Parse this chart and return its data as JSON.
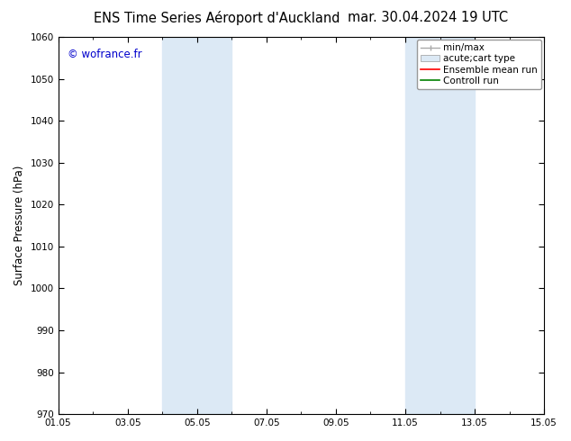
{
  "title_left": "ENS Time Series Aéroport d'Auckland",
  "title_right": "mar. 30.04.2024 19 UTC",
  "ylabel": "Surface Pressure (hPa)",
  "ylim": [
    970,
    1060
  ],
  "yticks": [
    970,
    980,
    990,
    1000,
    1010,
    1020,
    1030,
    1040,
    1050,
    1060
  ],
  "xtick_labels": [
    "01.05",
    "03.05",
    "05.05",
    "07.05",
    "09.05",
    "11.05",
    "13.05",
    "15.05"
  ],
  "xtick_positions": [
    1,
    3,
    5,
    7,
    9,
    11,
    13,
    15
  ],
  "xlim": [
    1,
    15
  ],
  "shaded_bands": [
    {
      "x_start": 4.0,
      "x_end": 6.0,
      "color": "#dce9f5"
    },
    {
      "x_start": 11.0,
      "x_end": 13.0,
      "color": "#dce9f5"
    }
  ],
  "watermark_text": "© wofrance.fr",
  "watermark_color": "#0000cc",
  "legend_items": [
    {
      "label": "min/max",
      "color": "#aaaaaa",
      "lw": 1.0,
      "style": "minmax"
    },
    {
      "label": "acute;cart type",
      "color": "#dce9f5",
      "lw": 6,
      "style": "fill"
    },
    {
      "label": "Ensemble mean run",
      "color": "red",
      "lw": 1.2,
      "style": "line"
    },
    {
      "label": "Controll run",
      "color": "green",
      "lw": 1.2,
      "style": "line"
    }
  ],
  "bg_color": "#ffffff",
  "plot_bg_color": "#ffffff",
  "title_fontsize": 10.5,
  "axis_fontsize": 8.5,
  "tick_fontsize": 7.5,
  "legend_fontsize": 7.5
}
